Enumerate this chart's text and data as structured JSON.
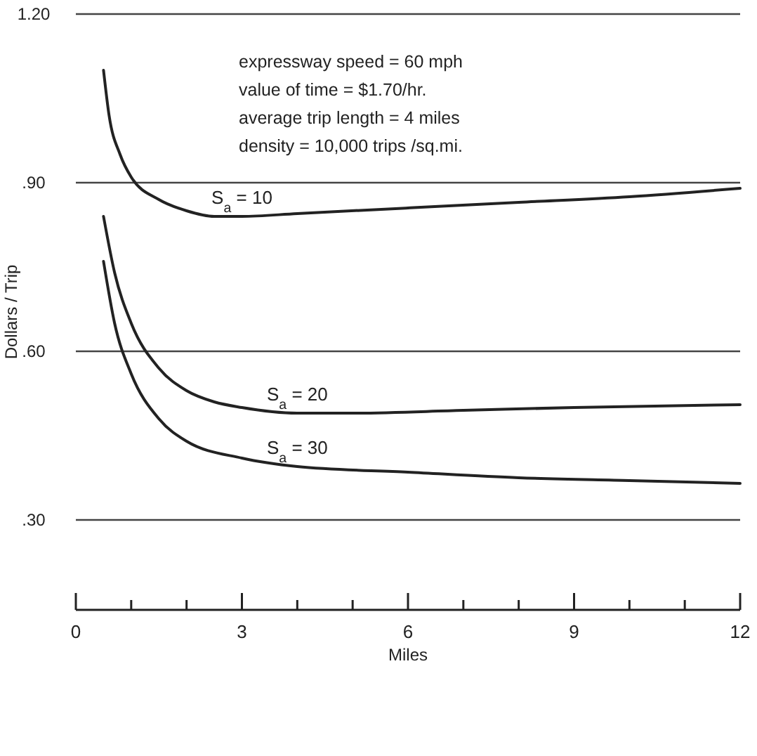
{
  "chart_data": {
    "type": "line",
    "xlabel": "Miles",
    "ylabel": "Dollars / Trip",
    "xlim": [
      0,
      12
    ],
    "ylim": [
      0.14,
      1.2
    ],
    "xticks": [
      0,
      {
        "value": 1,
        "label": null
      },
      {
        "value": 2,
        "label": null
      },
      3,
      {
        "value": 4,
        "label": null
      },
      {
        "value": 5,
        "label": null
      },
      6,
      {
        "value": 7,
        "label": null
      },
      {
        "value": 8,
        "label": null
      },
      9,
      {
        "value": 10,
        "label": null
      },
      {
        "value": 11,
        "label": null
      },
      12
    ],
    "yticks": [
      {
        "value": 0.3,
        "label": ".30"
      },
      {
        "value": 0.6,
        "label": ".60"
      },
      {
        "value": 0.9,
        "label": ".90"
      },
      {
        "value": 1.2,
        "label": "1.20"
      }
    ],
    "grid": "y",
    "marker": "none",
    "line_style": "solid",
    "annotations": [
      "expressway speed = 60 mph",
      "value of time = $1.70/hr.",
      "average trip length = 4 miles",
      "density = 10,000 trips /sq.mi."
    ],
    "series": [
      {
        "name": "S$_{a}$ = 10",
        "color": "#222222",
        "x": [
          0.5,
          0.6,
          0.8,
          1,
          1.5,
          2,
          2.5,
          3,
          4,
          6,
          8,
          10,
          12
        ],
        "values": [
          1.1,
          1.02,
          0.95,
          0.91,
          0.87,
          0.85,
          0.84,
          0.84,
          0.845,
          0.855,
          0.865,
          0.875,
          0.89
        ]
      },
      {
        "name": "S$_{a}$ = 20",
        "color": "#222222",
        "x": [
          0.5,
          0.7,
          1,
          1.5,
          2,
          2.5,
          3,
          4,
          5,
          7,
          9,
          12
        ],
        "values": [
          0.84,
          0.74,
          0.65,
          0.57,
          0.53,
          0.51,
          0.5,
          0.49,
          0.49,
          0.495,
          0.5,
          0.505
        ]
      },
      {
        "name": "S$_{a}$ = 30",
        "color": "#222222",
        "x": [
          0.5,
          0.7,
          1,
          1.5,
          2,
          3,
          4,
          6,
          8,
          10,
          12
        ],
        "values": [
          0.76,
          0.65,
          0.56,
          0.48,
          0.44,
          0.41,
          0.395,
          0.385,
          0.375,
          0.37,
          0.365
        ]
      }
    ]
  }
}
